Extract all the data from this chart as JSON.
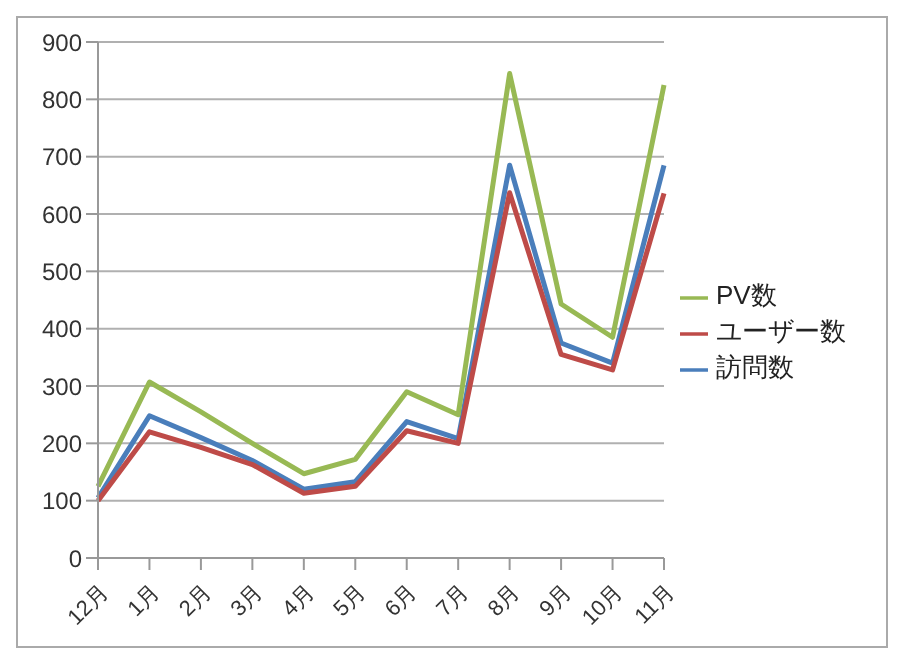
{
  "chart_data": {
    "type": "line",
    "categories": [
      "12月",
      "1月",
      "2月",
      "3月",
      "4月",
      "5月",
      "6月",
      "7月",
      "8月",
      "9月",
      "10月",
      "11月"
    ],
    "series": [
      {
        "name": "訪問数",
        "color": "#4a7ebb",
        "values": [
          105,
          248,
          210,
          170,
          120,
          133,
          238,
          208,
          685,
          375,
          340,
          685
        ]
      },
      {
        "name": "ユーザー数",
        "color": "#be4b48",
        "values": [
          100,
          220,
          193,
          163,
          113,
          125,
          222,
          200,
          637,
          355,
          328,
          636
        ]
      },
      {
        "name": "PV数",
        "color": "#98b954",
        "values": [
          125,
          307,
          255,
          200,
          147,
          172,
          290,
          250,
          845,
          443,
          385,
          825
        ]
      }
    ],
    "ylim": [
      0,
      900
    ],
    "yticks": [
      0,
      100,
      200,
      300,
      400,
      500,
      600,
      700,
      800,
      900
    ],
    "grid": "y",
    "legend": "right",
    "marker": "none"
  }
}
